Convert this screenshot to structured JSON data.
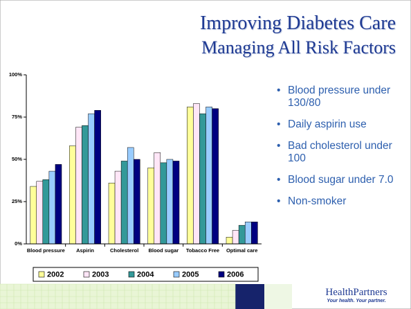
{
  "header": {
    "title": "Improving Diabetes Care",
    "subtitle": "Managing All Risk Factors"
  },
  "bullets": [
    "Blood pressure under 130/80",
    "Daily aspirin use",
    "Bad cholesterol under 100",
    "Blood sugar under 7.0",
    "Non-smoker"
  ],
  "logo": {
    "name": "HealthPartners",
    "tagline": "Your health. Your partner."
  },
  "chart_data": {
    "type": "bar",
    "categories": [
      "Blood pressure",
      "Aspirin",
      "Cholesterol",
      "Blood sugar",
      "Tobacco Free",
      "Optimal care"
    ],
    "series": [
      {
        "name": "2002",
        "color": "#ffff99",
        "values": [
          34,
          58,
          36,
          45,
          81,
          4
        ]
      },
      {
        "name": "2003",
        "color": "#ffe6f7",
        "values": [
          37,
          69,
          43,
          54,
          83,
          8
        ]
      },
      {
        "name": "2004",
        "color": "#339999",
        "values": [
          38,
          70,
          49,
          48,
          77,
          11
        ]
      },
      {
        "name": "2005",
        "color": "#99ccff",
        "values": [
          43,
          77,
          57,
          50,
          81,
          13
        ]
      },
      {
        "name": "2006",
        "color": "#000080",
        "values": [
          47,
          79,
          50,
          49,
          80,
          13
        ]
      }
    ],
    "ylim": [
      0,
      100
    ],
    "yticks": [
      {
        "value": 0,
        "label": "0%"
      },
      {
        "value": 25,
        "label": "25%"
      },
      {
        "value": 50,
        "label": "50%"
      },
      {
        "value": 75,
        "label": "75%"
      },
      {
        "value": 100,
        "label": "100%"
      }
    ],
    "legend": "bottom"
  }
}
